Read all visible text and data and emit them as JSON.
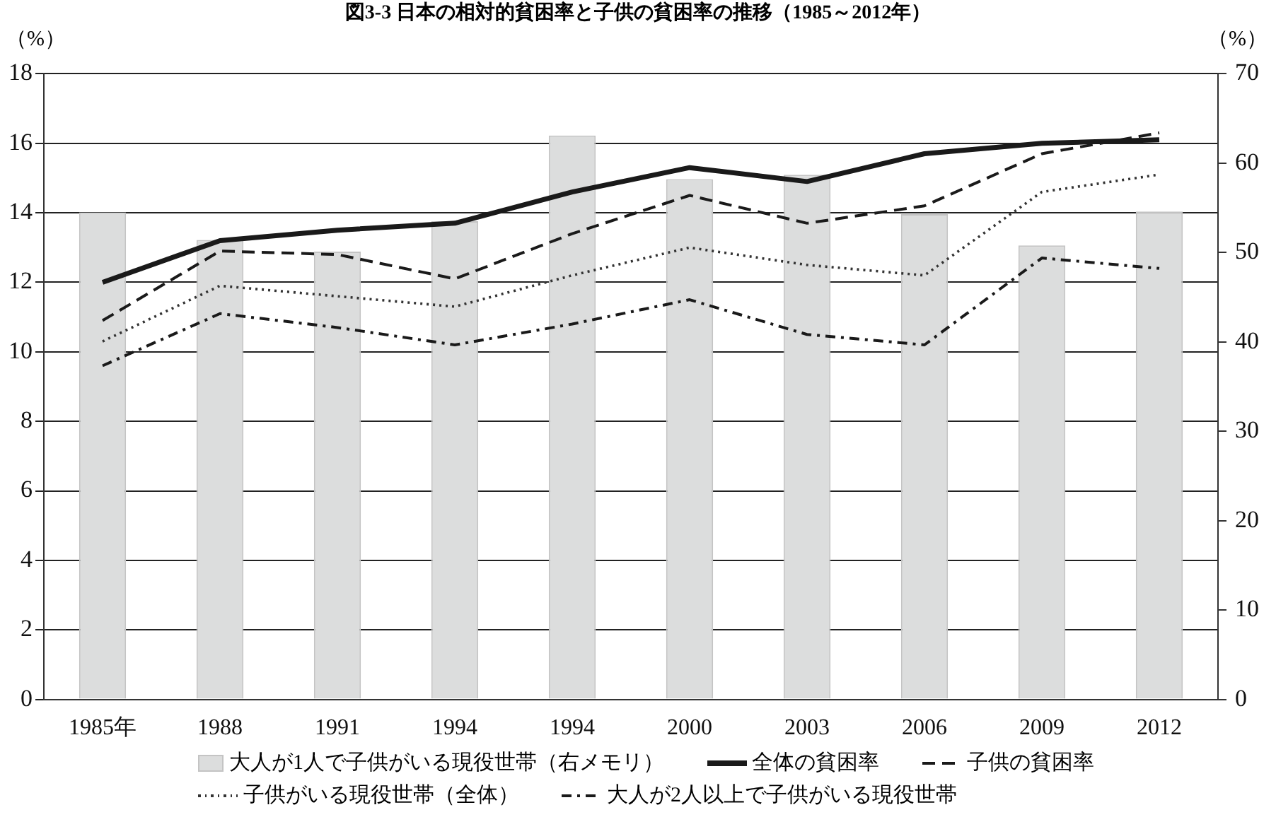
{
  "chart_data": {
    "type": "line",
    "title": "図3-3 日本の相対的貧困率と子供の貧困率の推移（1985～2012年）",
    "ylabel": "（%）",
    "y2label": "（%）",
    "categories": [
      "1985年",
      "1988",
      "1991",
      "1994",
      "1994",
      "2000",
      "2003",
      "2006",
      "2009",
      "2012"
    ],
    "ylim": [
      0,
      18
    ],
    "yticks": [
      0,
      2,
      4,
      6,
      8,
      10,
      12,
      14,
      16,
      18
    ],
    "y2lim": [
      0,
      70
    ],
    "y2ticks": [
      0,
      10,
      20,
      30,
      40,
      50,
      60,
      70
    ],
    "grid": "y",
    "legend": "bottom",
    "marker": "none",
    "series": [
      {
        "name": "大人が1人で子供がいる現役世帯（右メモリ）",
        "type": "bar",
        "axis": "y2",
        "color": "#dcdddd",
        "values": [
          54.5,
          51.4,
          50.1,
          53.5,
          63.1,
          58.2,
          58.7,
          54.3,
          50.8,
          54.6
        ]
      },
      {
        "name": "全体の貧困率",
        "color": "#1a1a1a",
        "line_style": "solid",
        "values": [
          12.0,
          13.2,
          13.5,
          13.7,
          14.6,
          15.3,
          14.9,
          15.7,
          16.0,
          16.1
        ]
      },
      {
        "name": "子供の貧困率",
        "color": "#1a1a1a",
        "line_style": "dashed",
        "values": [
          10.9,
          12.9,
          12.8,
          12.1,
          13.4,
          14.5,
          13.7,
          14.2,
          15.7,
          16.3
        ]
      },
      {
        "name": "子供がいる現役世帯（全体）",
        "color": "#333333",
        "line_style": "dotted",
        "values": [
          10.3,
          11.9,
          11.6,
          11.3,
          12.2,
          13.0,
          12.5,
          12.2,
          14.6,
          15.1
        ]
      },
      {
        "name": "大人が2人以上で子供がいる現役世帯",
        "color": "#1a1a1a",
        "line_style": "dashdot",
        "values": [
          9.6,
          11.1,
          10.7,
          10.2,
          10.8,
          11.5,
          10.5,
          10.2,
          12.7,
          12.4
        ]
      }
    ]
  }
}
